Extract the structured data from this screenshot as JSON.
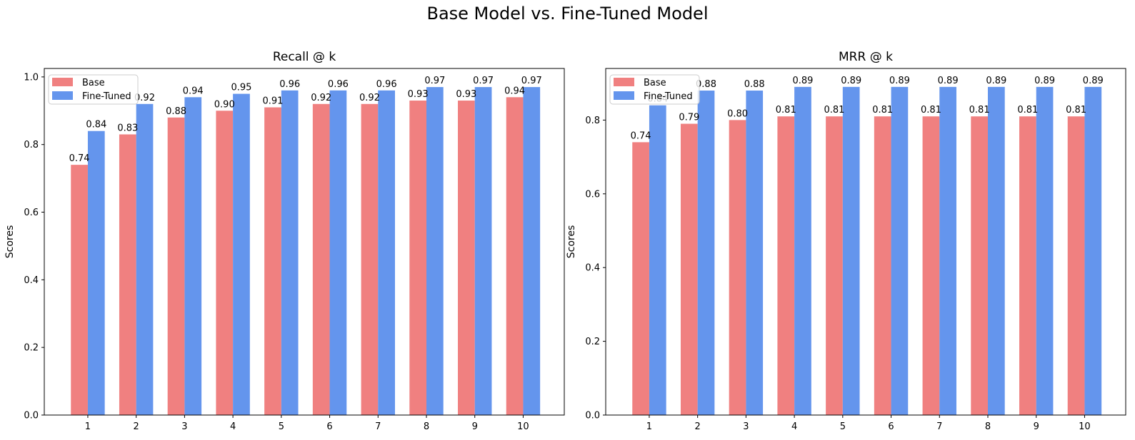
{
  "figure": {
    "title": "Base Model vs. Fine-Tuned Model",
    "background": "#ffffff",
    "text_color": "#000000"
  },
  "colors": {
    "base_series": "#F08080",
    "fine_tuned_series": "#6495ED",
    "legend_border": "#cccccc",
    "axis": "#000000"
  },
  "chart_data": [
    {
      "type": "bar",
      "title": "Recall @ k",
      "xlabel": "",
      "ylabel": "Scores",
      "categories": [
        1,
        2,
        3,
        4,
        5,
        6,
        7,
        8,
        9,
        10
      ],
      "series": [
        {
          "name": "Base",
          "color": "#F08080",
          "values": [
            0.74,
            0.83,
            0.88,
            0.9,
            0.91,
            0.92,
            0.92,
            0.93,
            0.93,
            0.94
          ]
        },
        {
          "name": "Fine-Tuned",
          "color": "#6495ED",
          "values": [
            0.84,
            0.92,
            0.94,
            0.95,
            0.96,
            0.96,
            0.96,
            0.97,
            0.97,
            0.97
          ]
        }
      ],
      "bar_value_labels": true,
      "yticks": [
        0.0,
        0.2,
        0.4,
        0.6,
        0.8,
        1.0
      ],
      "ylim": [
        0,
        1.025
      ],
      "legend_position": "upper left",
      "grid": false
    },
    {
      "type": "bar",
      "title": "MRR @ k",
      "xlabel": "",
      "ylabel": "Scores",
      "categories": [
        1,
        2,
        3,
        4,
        5,
        6,
        7,
        8,
        9,
        10
      ],
      "series": [
        {
          "name": "Base",
          "color": "#F08080",
          "values": [
            0.74,
            0.79,
            0.8,
            0.81,
            0.81,
            0.81,
            0.81,
            0.81,
            0.81,
            0.81
          ]
        },
        {
          "name": "Fine-Tuned",
          "color": "#6495ED",
          "values": [
            0.84,
            0.88,
            0.88,
            0.89,
            0.89,
            0.89,
            0.89,
            0.89,
            0.89,
            0.89
          ]
        }
      ],
      "bar_value_labels": true,
      "yticks": [
        0.0,
        0.2,
        0.4,
        0.6,
        0.8
      ],
      "ylim": [
        0,
        0.94
      ],
      "legend_position": "upper left",
      "grid": false
    }
  ]
}
